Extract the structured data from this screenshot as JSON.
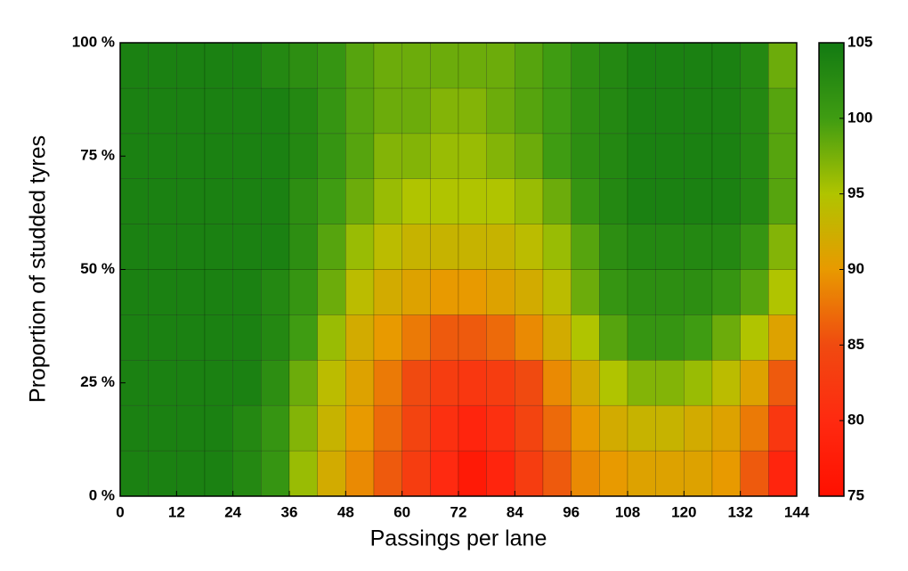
{
  "chart_data": {
    "type": "heatmap",
    "xlabel": "Passings per lane",
    "ylabel": "Proportion of studded tyres",
    "xlim": [
      0,
      144
    ],
    "xticks": [
      0,
      12,
      24,
      36,
      48,
      60,
      72,
      84,
      96,
      108,
      120,
      132,
      144
    ],
    "ylim": [
      0,
      100
    ],
    "yticks": [
      {
        "value": 0,
        "label": "0 %"
      },
      {
        "value": 25,
        "label": "25 %"
      },
      {
        "value": 50,
        "label": "50 %"
      },
      {
        "value": 75,
        "label": "75 %"
      },
      {
        "value": 100,
        "label": "100 %"
      }
    ],
    "xbins": [
      0,
      6,
      12,
      18,
      24,
      30,
      36,
      42,
      48,
      54,
      60,
      66,
      72,
      78,
      84,
      90,
      96,
      102,
      108,
      114,
      120,
      126,
      132,
      138,
      144
    ],
    "ybins": [
      0,
      10,
      20,
      30,
      40,
      50,
      60,
      70,
      80,
      90,
      100
    ],
    "zlim": [
      75,
      105
    ],
    "zticks": [
      75,
      80,
      85,
      90,
      95,
      100,
      105
    ],
    "colorscale": [
      "#ff1000",
      "#ff2a10",
      "#f04a10",
      "#e89a00",
      "#b0c400",
      "#3f9c12",
      "#127a12"
    ],
    "z": [
      [
        104,
        104,
        104,
        104,
        103,
        101,
        96,
        92,
        89,
        86,
        83,
        80,
        77,
        79,
        83,
        86,
        89,
        90,
        91,
        91,
        91,
        90,
        86,
        79
      ],
      [
        104,
        104,
        104,
        104,
        103,
        101,
        97,
        93,
        90,
        87,
        84,
        81,
        79,
        81,
        84,
        87,
        90,
        92,
        93,
        93,
        92,
        91,
        88,
        82
      ],
      [
        104,
        104,
        104,
        104,
        104,
        102,
        98,
        94,
        91,
        88,
        85,
        83,
        82,
        83,
        85,
        89,
        92,
        95,
        97,
        97,
        96,
        94,
        91,
        86
      ],
      [
        104,
        104,
        104,
        104,
        104,
        103,
        100,
        96,
        92,
        90,
        88,
        86,
        86,
        87,
        89,
        92,
        95,
        99,
        101,
        101,
        100,
        98,
        95,
        91
      ],
      [
        104,
        104,
        104,
        104,
        104,
        103,
        101,
        98,
        94,
        92,
        91,
        90,
        90,
        91,
        92,
        94,
        98,
        101,
        102,
        102,
        102,
        101,
        99,
        95
      ],
      [
        104,
        104,
        104,
        104,
        104,
        104,
        102,
        99,
        96,
        94,
        93,
        93,
        93,
        93,
        94,
        96,
        99,
        102,
        103,
        103,
        103,
        103,
        101,
        97
      ],
      [
        104,
        104,
        104,
        104,
        104,
        104,
        102,
        100,
        98,
        96,
        95,
        95,
        95,
        95,
        96,
        98,
        101,
        103,
        104,
        104,
        104,
        104,
        103,
        99
      ],
      [
        104,
        104,
        104,
        104,
        104,
        104,
        103,
        101,
        99,
        97,
        97,
        96,
        96,
        97,
        98,
        100,
        102,
        103,
        104,
        104,
        104,
        104,
        103,
        99
      ],
      [
        104,
        104,
        104,
        104,
        104,
        104,
        103,
        101,
        99,
        98,
        98,
        97,
        97,
        98,
        99,
        100,
        102,
        103,
        104,
        104,
        104,
        104,
        103,
        99
      ],
      [
        104,
        104,
        104,
        104,
        104,
        103,
        102,
        101,
        99,
        98,
        98,
        98,
        98,
        98,
        99,
        100,
        102,
        103,
        104,
        104,
        104,
        104,
        103,
        98
      ]
    ]
  }
}
